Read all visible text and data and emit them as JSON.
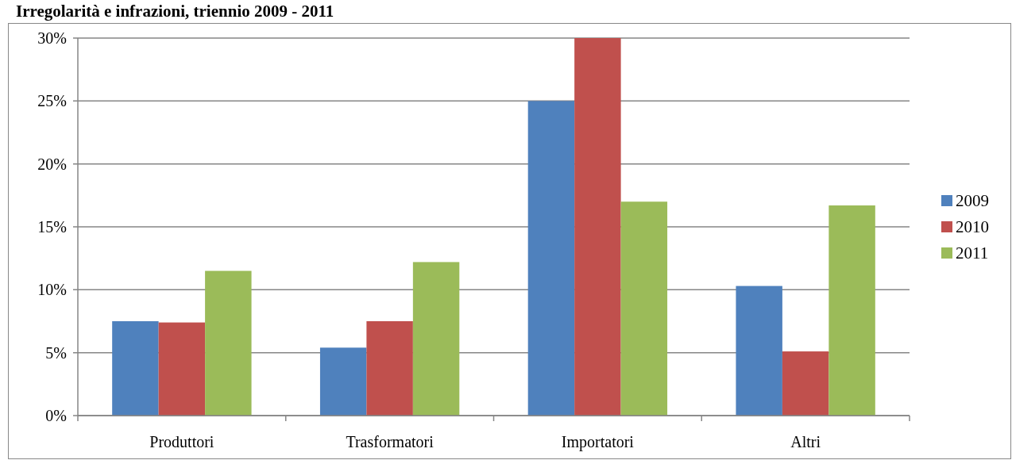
{
  "chart_data": {
    "type": "bar",
    "title": "Irregolarità e infrazioni, triennio 2009 - 2011",
    "categories": [
      "Produttori",
      "Trasformatori",
      "Importatori",
      "Altri"
    ],
    "series": [
      {
        "name": "2009",
        "color": "#4f81bd",
        "values": [
          7.5,
          5.4,
          25,
          10.3
        ]
      },
      {
        "name": "2010",
        "color": "#c0504d",
        "values": [
          7.4,
          7.5,
          30,
          5.1
        ]
      },
      {
        "name": "2011",
        "color": "#9bbb59",
        "values": [
          11.5,
          12.2,
          17,
          16.7
        ]
      }
    ],
    "ylim": [
      0,
      30
    ],
    "yticks": [
      {
        "value": 0,
        "label": "0%"
      },
      {
        "value": 5,
        "label": "5%"
      },
      {
        "value": 10,
        "label": "10%"
      },
      {
        "value": 15,
        "label": "15%"
      },
      {
        "value": 20,
        "label": "20%"
      },
      {
        "value": 25,
        "label": "25%"
      },
      {
        "value": 30,
        "label": "30%"
      }
    ],
    "grid": "y",
    "legend": "right"
  }
}
